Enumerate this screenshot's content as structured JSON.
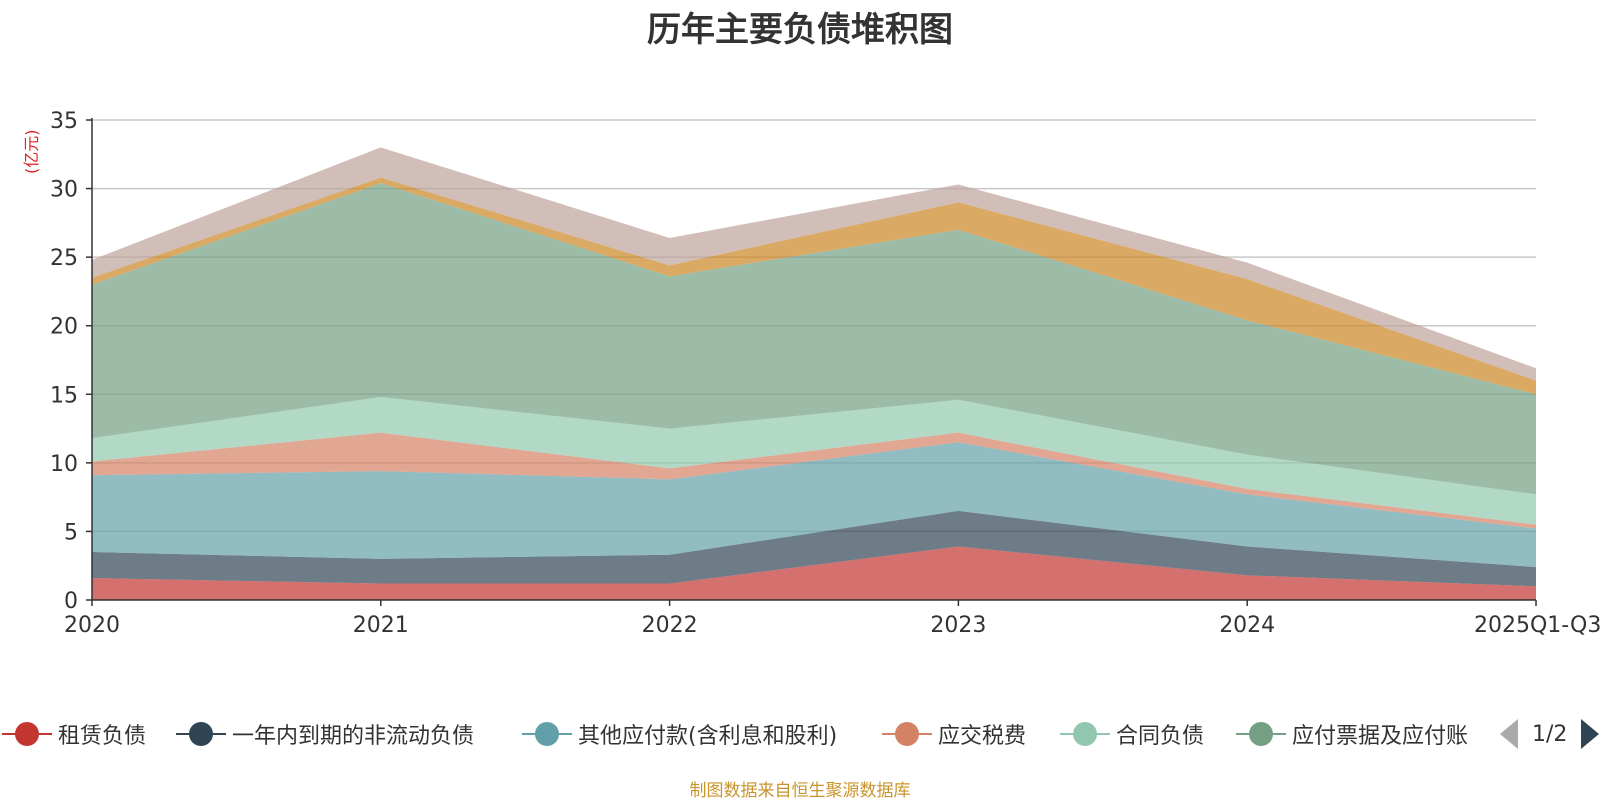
{
  "chart_data": {
    "type": "area",
    "stacked": true,
    "title": "历年主要负债堆积图",
    "ylabel": "(亿元)",
    "categories": [
      "2020",
      "2021",
      "2022",
      "2023",
      "2024",
      "2025Q1-Q3"
    ],
    "ylim": [
      0,
      35
    ],
    "yticks": [
      0,
      5,
      10,
      15,
      20,
      25,
      30,
      35
    ],
    "grid": true,
    "series": [
      {
        "name": "租赁负债",
        "color": "#c23531",
        "values": [
          1.6,
          1.2,
          1.2,
          3.9,
          1.8,
          1.0
        ]
      },
      {
        "name": "一年内到期的非流动负债",
        "color": "#2f4554",
        "values": [
          1.9,
          1.8,
          2.1,
          2.6,
          2.1,
          1.4
        ]
      },
      {
        "name": "其他应付款(含利息和股利)",
        "color": "#61a0a8",
        "values": [
          5.6,
          6.4,
          5.5,
          5.0,
          3.8,
          2.8
        ]
      },
      {
        "name": "应交税费",
        "color": "#d48265",
        "values": [
          1.0,
          2.8,
          0.8,
          0.7,
          0.4,
          0.3
        ]
      },
      {
        "name": "合同负债",
        "color": "#91c7ae",
        "values": [
          1.7,
          2.6,
          2.9,
          2.4,
          2.5,
          2.2
        ]
      },
      {
        "name": "应付票据及应付账款",
        "color": "#749f83",
        "values": [
          11.2,
          15.6,
          11.1,
          12.4,
          9.8,
          7.3
        ]
      },
      {
        "name": "",
        "color": "#ca8622",
        "values": [
          0.5,
          0.4,
          0.8,
          2.0,
          3.0,
          1.0
        ]
      },
      {
        "name": "",
        "color": "#bda29a",
        "values": [
          1.3,
          2.2,
          2.0,
          1.3,
          1.2,
          0.9
        ]
      }
    ],
    "legend_position": "bottom"
  },
  "legend": {
    "labels": [
      "租赁负债",
      "一年内到期的非流动负债",
      "其他应付款(含利息和股利)",
      "应交税费",
      "合同负债",
      "应付票据及应付账"
    ],
    "colors": [
      "#c23531",
      "#2f4554",
      "#61a0a8",
      "#d48265",
      "#91c7ae",
      "#749f83"
    ],
    "page": "1/2"
  },
  "footer": "制图数据来自恒生聚源数据库"
}
